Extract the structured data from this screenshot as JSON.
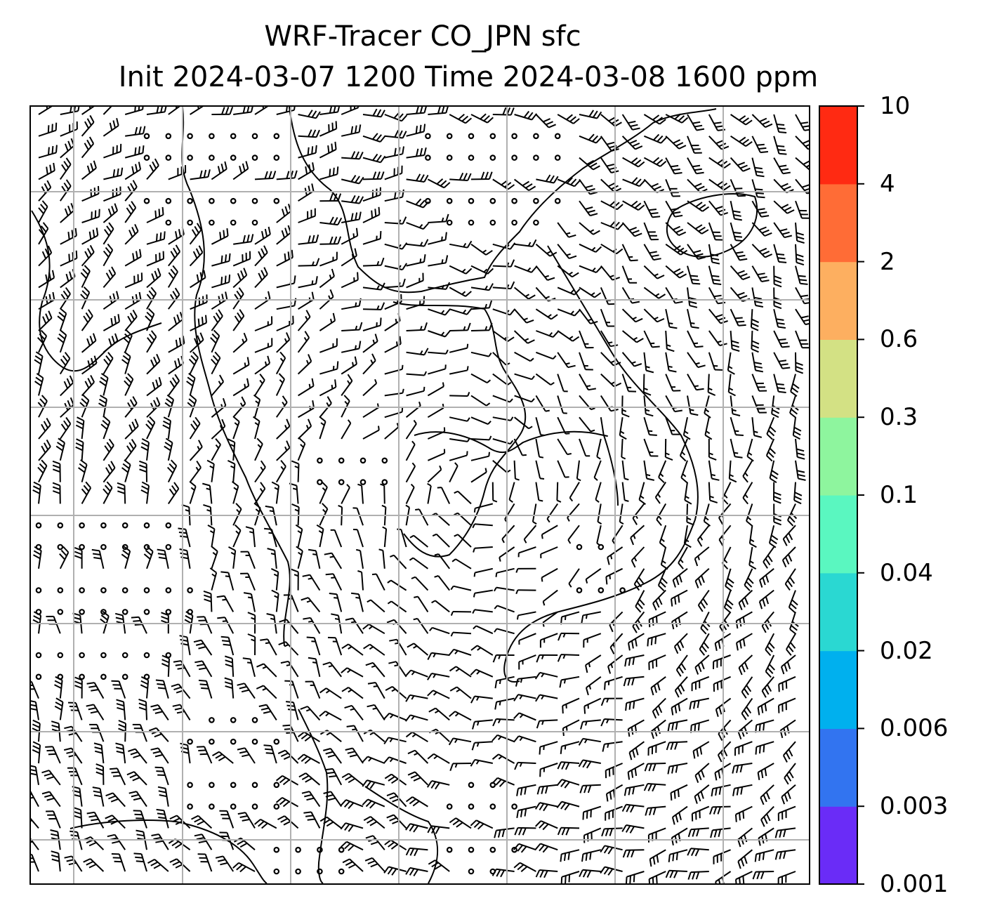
{
  "title": {
    "line1": "WRF-Tracer CO_JPN sfc",
    "line2": "Init 2024-03-07 1200 Time 2024-03-08 1600 ppm"
  },
  "map": {
    "field": "surface wind barbs with coastlines",
    "gridlines": true,
    "meridian_count": 6,
    "parallel_count": 7
  },
  "colorbar": {
    "labels": [
      "0.001",
      "0.003",
      "0.006",
      "0.02",
      "0.04",
      "0.1",
      "0.3",
      "0.6",
      "2",
      "4",
      "10"
    ],
    "colors": [
      "#6a2cf7",
      "#3274f0",
      "#00b0ee",
      "#2ad8d2",
      "#5af7c0",
      "#8ef59e",
      "#d3e184",
      "#fdaf60",
      "#ff6c36",
      "#ff2a12"
    ]
  }
}
